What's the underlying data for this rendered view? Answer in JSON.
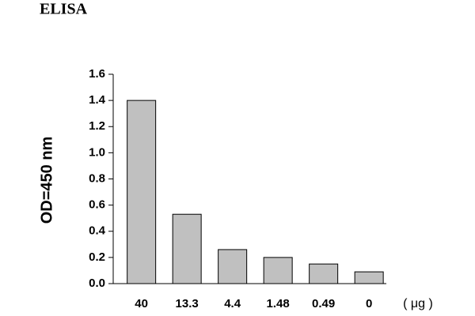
{
  "chart_data": {
    "type": "bar",
    "title": "ELISA",
    "y_label": "OD=450 nm",
    "x_label": "( μg )",
    "categories": [
      "40",
      "13.3",
      "4.4",
      "1.48",
      "0.49",
      "0"
    ],
    "values": [
      1.4,
      0.53,
      0.26,
      0.2,
      0.15,
      0.09
    ],
    "color": "#c0c0c0",
    "ylim": [
      0,
      1.6
    ],
    "yticks": [
      {
        "value": 0,
        "label": "0.0"
      },
      0.2,
      0.4,
      0.6,
      0.8,
      {
        "value": 1,
        "label": "1.0"
      },
      1.2,
      1.4,
      1.6
    ],
    "grid": false
  }
}
